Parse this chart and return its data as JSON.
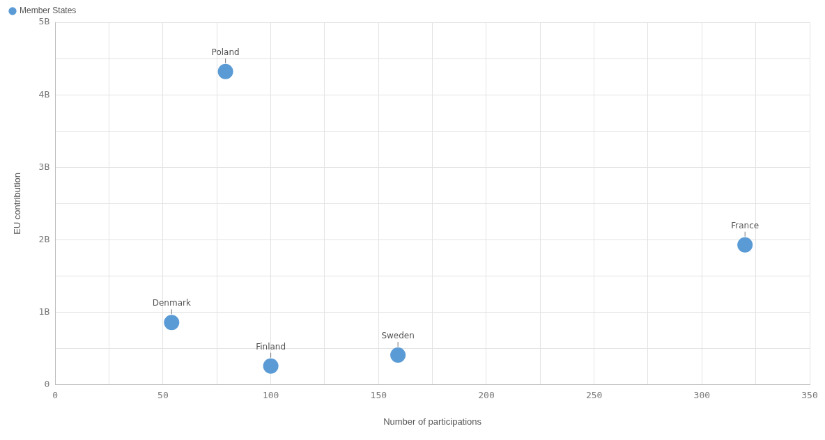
{
  "chart_data": {
    "type": "scatter",
    "xlabel": "Number of participations",
    "ylabel": "EU contribution",
    "x": [
      79,
      320,
      54,
      100,
      159
    ],
    "series": [
      {
        "name": "Member States",
        "color": "#5b9bd5",
        "values": [
          4.32,
          1.93,
          0.86,
          0.26,
          0.41
        ]
      }
    ],
    "xlim": [
      0,
      350
    ],
    "ylim": [
      0,
      5
    ],
    "xticks": [
      0,
      {
        "value": 25,
        "label": null
      },
      50,
      {
        "value": 75,
        "label": null
      },
      100,
      {
        "value": 125,
        "label": null
      },
      150,
      {
        "value": 175,
        "label": null
      },
      200,
      {
        "value": 225,
        "label": null
      },
      250,
      {
        "value": 275,
        "label": null
      },
      300,
      {
        "value": 325,
        "label": null
      },
      350
    ],
    "yticks": [
      {
        "value": 0,
        "label": "0"
      },
      {
        "value": 0.5,
        "label": null
      },
      {
        "value": 1,
        "label": "1B"
      },
      {
        "value": 1.5,
        "label": null
      },
      {
        "value": 2,
        "label": "2B"
      },
      {
        "value": 2.5,
        "label": null
      },
      {
        "value": 3,
        "label": "3B"
      },
      {
        "value": 3.5,
        "label": null
      },
      {
        "value": 4,
        "label": "4B"
      },
      {
        "value": 4.5,
        "label": null
      },
      {
        "value": 5,
        "label": "5B"
      }
    ],
    "annotations": [
      {
        "text": "Poland",
        "x": 79,
        "y": 4.32
      },
      {
        "text": "France",
        "x": 320,
        "y": 1.93
      },
      {
        "text": "Denmark",
        "x": 54,
        "y": 0.86
      },
      {
        "text": "Finland",
        "x": 100,
        "y": 0.26
      },
      {
        "text": "Sweden",
        "x": 159,
        "y": 0.41
      }
    ],
    "grid": true,
    "legend": "top left",
    "marker": "circle"
  }
}
